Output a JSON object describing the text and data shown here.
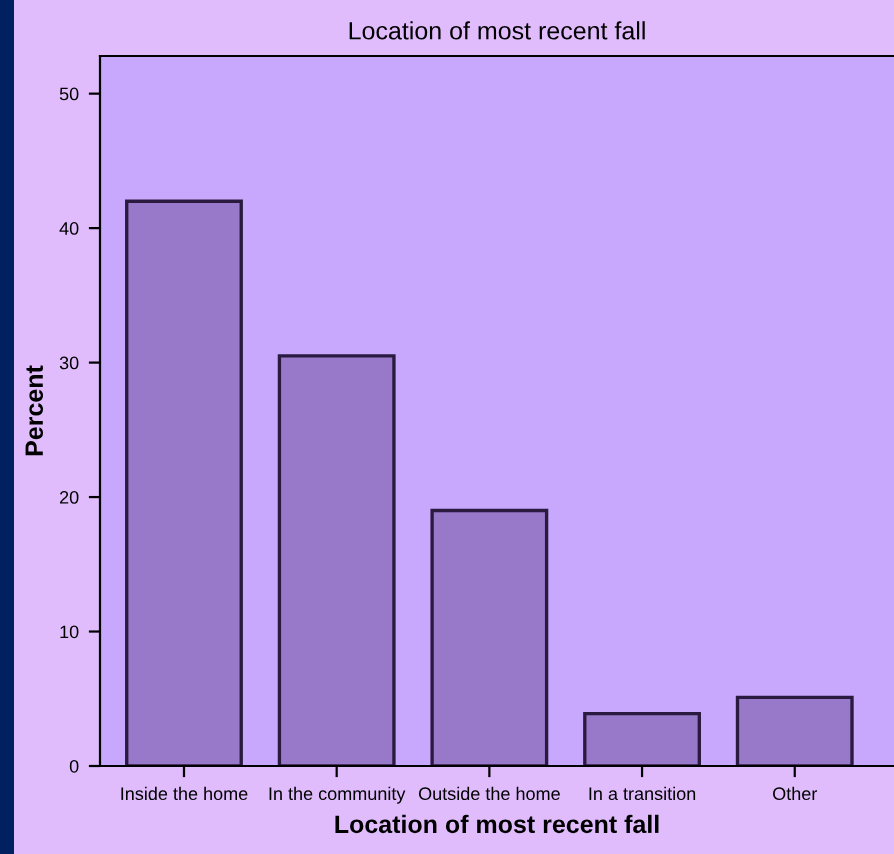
{
  "chart_data": {
    "type": "bar",
    "title": "Location of most recent fall",
    "xlabel": "Location of most recent fall",
    "ylabel": "Percent",
    "categories": [
      "Inside the home",
      "In the community",
      "Outside the home",
      "In a transition",
      "Other"
    ],
    "values": [
      42.0,
      30.5,
      19.0,
      3.9,
      5.1
    ],
    "color": "#9878c8",
    "ylim": [
      0,
      52.8
    ],
    "yticks": [
      0,
      10,
      20,
      30,
      40,
      50
    ],
    "grid": false,
    "legend": false
  }
}
